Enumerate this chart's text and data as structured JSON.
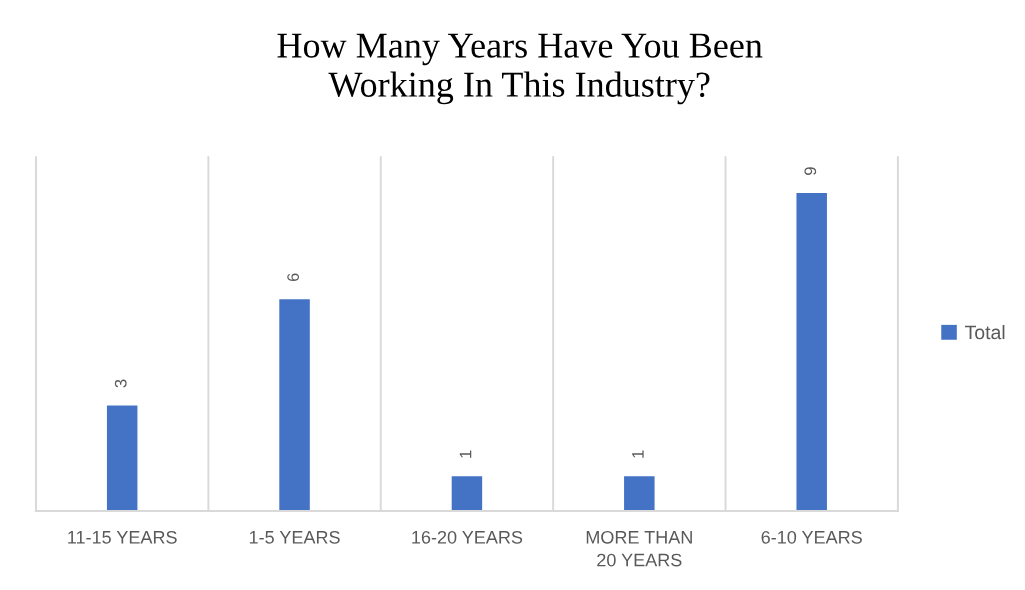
{
  "chart_data": {
    "type": "bar",
    "title": "How Many Years Have You Been\nWorking In This Industry?",
    "categories": [
      "11-15 YEARS",
      "1-5 YEARS",
      "16-20 YEARS",
      "MORE THAN\n20 YEARS",
      "6-10 YEARS"
    ],
    "series": [
      {
        "name": "Total",
        "color": "#4472c4",
        "values": [
          3,
          6,
          1,
          1,
          9
        ]
      }
    ],
    "ylim": [
      0,
      10
    ],
    "grid": "x",
    "legend": "right",
    "tick_labels": "x",
    "data_labels": true
  }
}
